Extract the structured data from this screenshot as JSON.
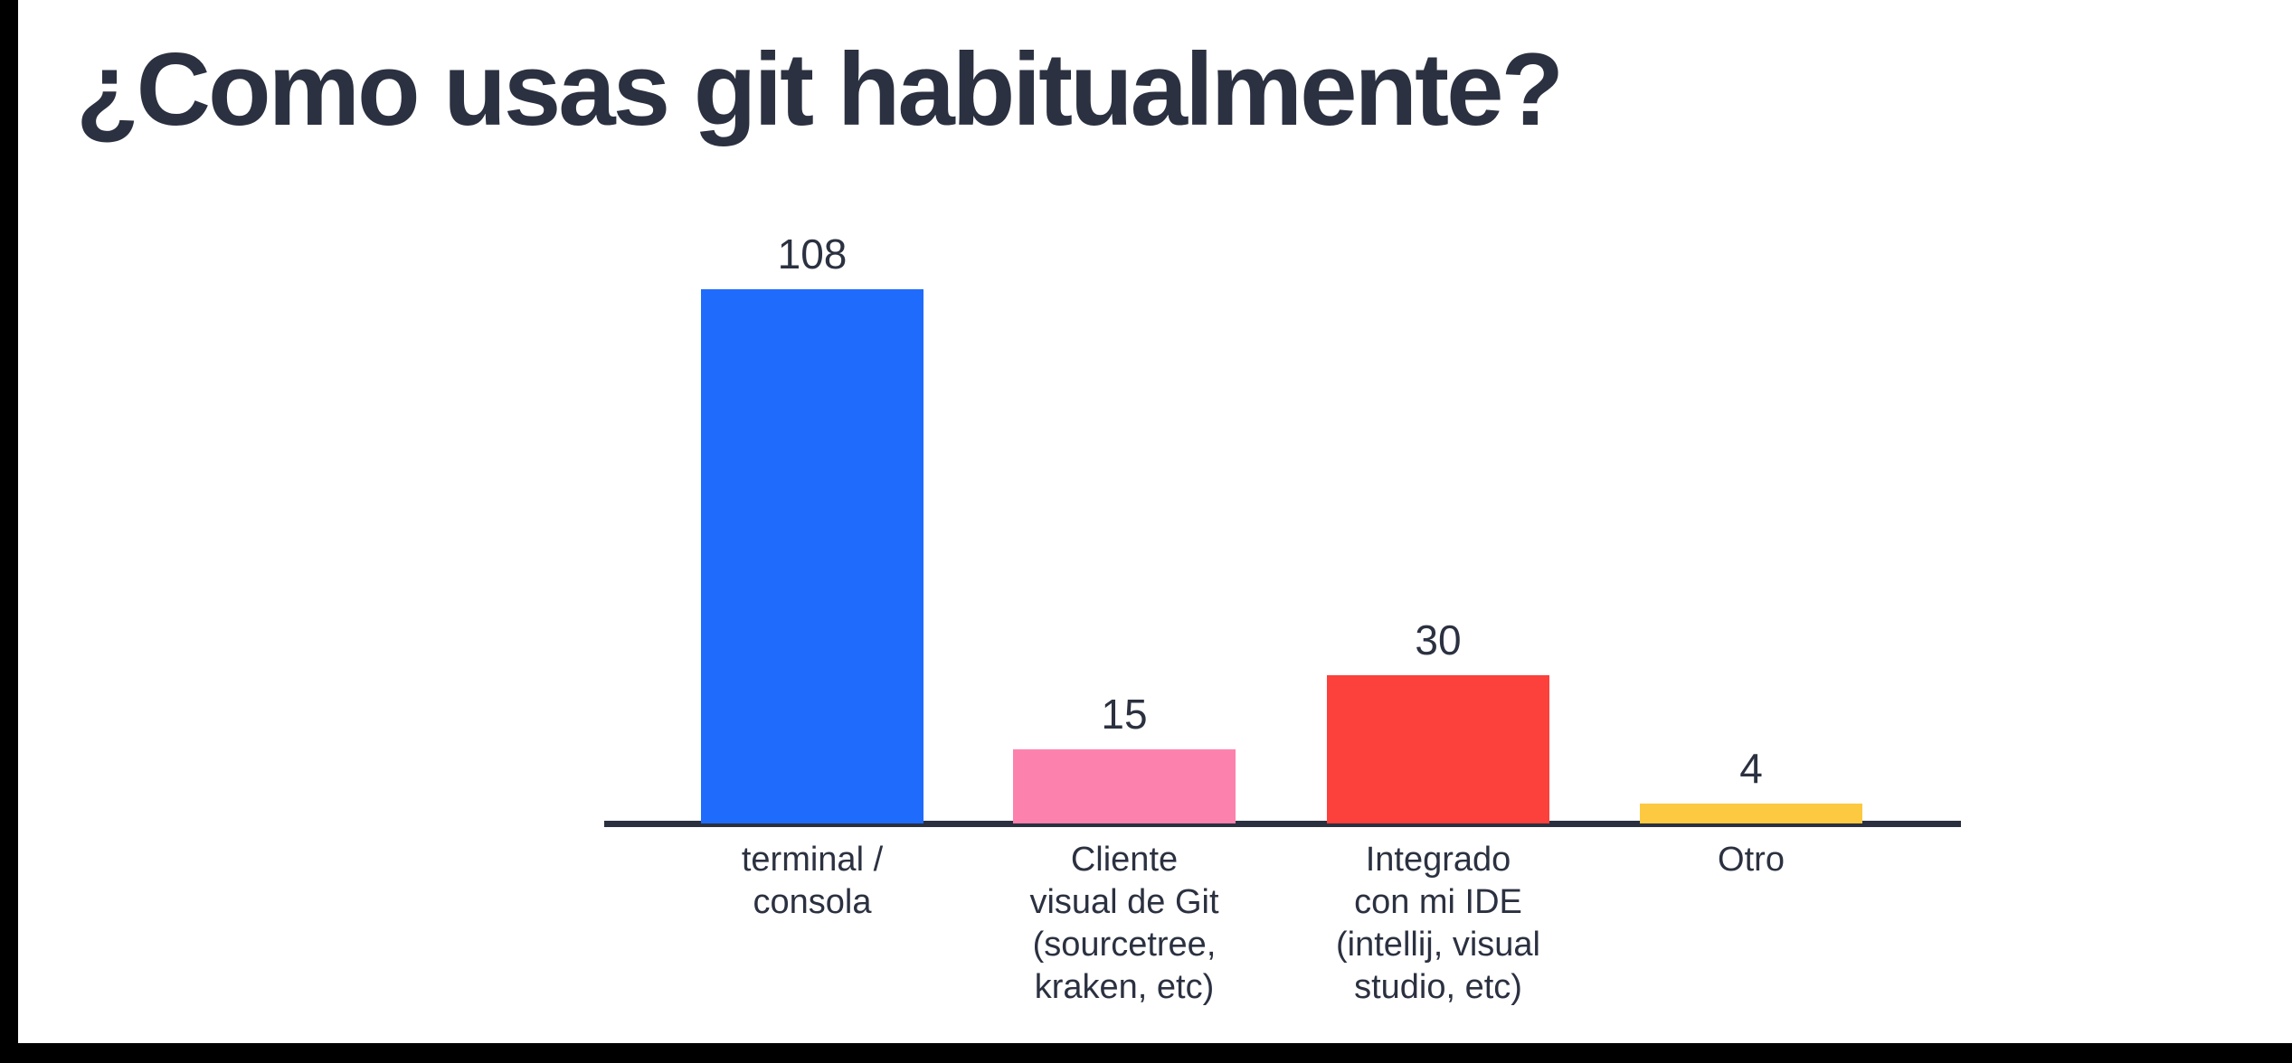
{
  "title": "¿Como usas git habitualmente?",
  "theme": {
    "background": "#ffffff",
    "letterbox_color": "#000000",
    "text_color": "#2b3140",
    "axis_color": "#2a3040"
  },
  "chart_data": {
    "type": "bar",
    "title": "¿Como usas git habitualmente?",
    "categories": [
      "terminal / consola",
      "Cliente visual de Git (sourcetree, kraken, etc)",
      "Integrado con mi IDE (intellij, visual studio, etc)",
      "Otro"
    ],
    "category_lines": [
      [
        "terminal /",
        "consola"
      ],
      [
        "Cliente",
        "visual de Git",
        "(sourcetree,",
        "kraken, etc)"
      ],
      [
        "Integrado",
        "con mi IDE",
        "(intellij, visual",
        "studio, etc)"
      ],
      [
        "Otro"
      ]
    ],
    "values": [
      108,
      15,
      30,
      4
    ],
    "value_labels": [
      "108",
      "15",
      "30",
      "4"
    ],
    "bar_colors": [
      "#1f6bfc",
      "#fc81ad",
      "#fc403c",
      "#fcc941"
    ],
    "xlabel": "",
    "ylabel": "",
    "ylim": [
      0,
      115
    ],
    "grid": false,
    "legend": null,
    "y_axis_visible": false,
    "value_labels_position": "above-bars"
  }
}
